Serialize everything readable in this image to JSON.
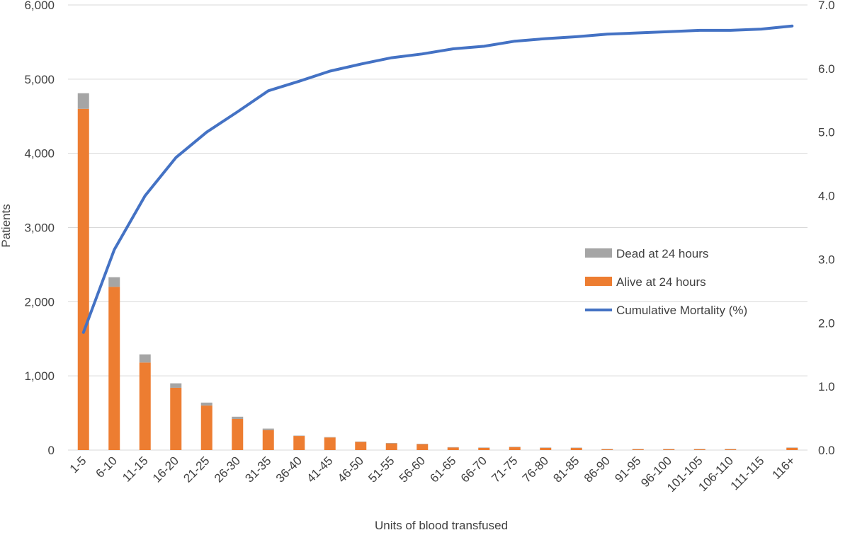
{
  "chart_data": {
    "type": "bar",
    "stacked": true,
    "title": "",
    "xlabel": "Units of blood transfused",
    "ylabel": "Patients",
    "y2label": "",
    "ylim": [
      0,
      6000
    ],
    "y2lim": [
      0,
      7.0
    ],
    "y_ticks": [
      "0",
      "1,000",
      "2,000",
      "3,000",
      "4,000",
      "5,000",
      "6,000"
    ],
    "y_tick_values": [
      0,
      1000,
      2000,
      3000,
      4000,
      5000,
      6000
    ],
    "y2_ticks": [
      "0.0",
      "1.0",
      "2.0",
      "3.0",
      "4.0",
      "5.0",
      "6.0",
      "7.0"
    ],
    "y2_tick_values": [
      0,
      1,
      2,
      3,
      4,
      5,
      6,
      7
    ],
    "grid": true,
    "legend_position": "middle-right",
    "categories": [
      "1-5",
      "6-10",
      "11-15",
      "16-20",
      "21-25",
      "26-30",
      "31-35",
      "36-40",
      "41-45",
      "46-50",
      "51-55",
      "56-60",
      "61-65",
      "66-70",
      "71-75",
      "76-80",
      "81-85",
      "86-90",
      "91-95",
      "96-100",
      "101-105",
      "106-110",
      "111-115",
      "116+"
    ],
    "series": [
      {
        "name": "Alive at 24 hours",
        "kind": "bar",
        "color": "#ED7D31",
        "values": [
          4600,
          2200,
          1180,
          840,
          600,
          420,
          270,
          190,
          170,
          110,
          90,
          80,
          35,
          30,
          40,
          30,
          28,
          10,
          10,
          10,
          10,
          10,
          0,
          30
        ]
      },
      {
        "name": "Dead at 24 hours",
        "kind": "bar",
        "color": "#A5A5A5",
        "values": [
          210,
          130,
          110,
          60,
          40,
          30,
          20,
          5,
          5,
          5,
          5,
          5,
          5,
          5,
          5,
          5,
          5,
          5,
          5,
          5,
          5,
          5,
          0,
          5
        ]
      },
      {
        "name": "Cumulative Mortality (%)",
        "kind": "line",
        "axis": "right",
        "color": "#4472C4",
        "values": [
          1.85,
          3.15,
          4.0,
          4.6,
          5.0,
          5.32,
          5.65,
          5.8,
          5.96,
          6.07,
          6.17,
          6.23,
          6.31,
          6.35,
          6.43,
          6.47,
          6.5,
          6.54,
          6.56,
          6.58,
          6.6,
          6.6,
          6.62,
          6.67
        ]
      }
    ],
    "legend_order": [
      "Dead at 24 hours",
      "Alive at 24 hours",
      "Cumulative Mortality (%)"
    ]
  }
}
